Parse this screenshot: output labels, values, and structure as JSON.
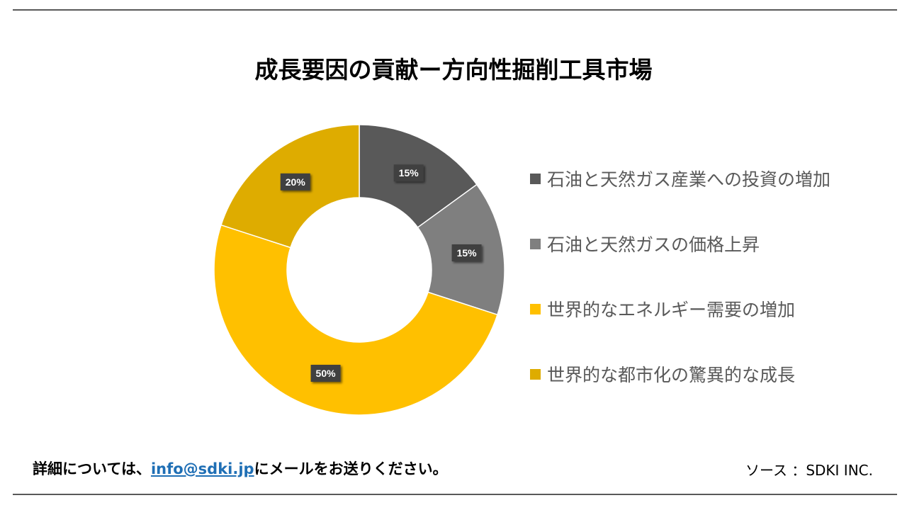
{
  "chart_data": {
    "type": "pie",
    "title": "成長要因の貢献ー方向性掘削工具市場",
    "categories": [
      "石油と天然ガス産業への投資の増加",
      "石油と天然ガスの価格上昇",
      "世界的なエネルギー需要の増加",
      "世界的な都市化の驚異的な成長"
    ],
    "values": [
      15,
      15,
      50,
      20
    ],
    "labels": [
      "15%",
      "15%",
      "50%",
      "20%"
    ],
    "colors": [
      "#595959",
      "#7f7f7f",
      "#ffc000",
      "#deac00"
    ],
    "donut": true,
    "legend_position": "right"
  },
  "footer": {
    "contact_prefix": "詳細については、",
    "email": "info@sdki.jp",
    "contact_suffix": "にメールをお送りください。",
    "source": "ソース ：SDKI INC."
  }
}
